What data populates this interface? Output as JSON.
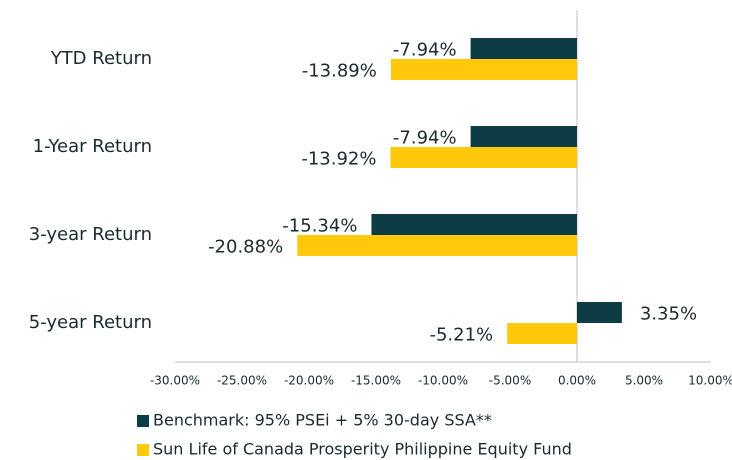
{
  "chart_data": {
    "type": "bar",
    "orientation": "horizontal",
    "categories": [
      "YTD Return",
      "1-Year Return",
      "3-year Return",
      "5-year Return"
    ],
    "series": [
      {
        "name": "Benchmark: 95% PSEi + 5% 30-day SSA**",
        "color": "#0d3c44",
        "values": [
          -7.94,
          -7.94,
          -15.34,
          3.35
        ],
        "value_labels": [
          "-7.94%",
          "-7.94%",
          "-15.34%",
          "3.35%"
        ]
      },
      {
        "name": "Sun Life of Canada Prosperity Philippine Equity Fund",
        "color": "#ffc80a",
        "values": [
          -13.89,
          -13.92,
          -20.88,
          -5.21
        ],
        "value_labels": [
          "-13.89%",
          "-13.92%",
          "-20.88%",
          "-5.21%"
        ]
      }
    ],
    "xlim": [
      -30,
      10
    ],
    "xticks": [
      {
        "value": -30,
        "label": "-30.00%"
      },
      {
        "value": -25,
        "label": "-25.00%"
      },
      {
        "value": -20,
        "label": "-20.00%"
      },
      {
        "value": -15,
        "label": "-15.00%"
      },
      {
        "value": -10,
        "label": "-10.00%"
      },
      {
        "value": -5,
        "label": "-5.00%"
      },
      {
        "value": 0,
        "label": "0.00%"
      },
      {
        "value": 5,
        "label": "5.00%"
      },
      {
        "value": 10,
        "label": "10.00%"
      }
    ],
    "legend": "bottom"
  }
}
